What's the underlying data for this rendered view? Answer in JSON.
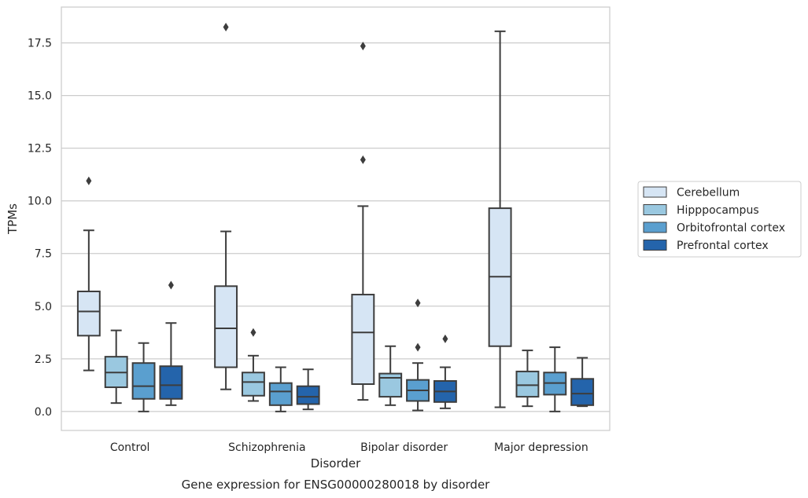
{
  "chart_data": {
    "type": "box",
    "xlabel": "Disorder",
    "ylabel": "TPMs",
    "caption": "Gene expression for ENSG00000280018 by disorder",
    "ylim": [
      -0.9,
      19.2
    ],
    "yticks": [
      0.0,
      2.5,
      5.0,
      7.5,
      10.0,
      12.5,
      15.0,
      17.5
    ],
    "ytick_labels": [
      "0.0",
      "2.5",
      "5.0",
      "7.5",
      "10.0",
      "12.5",
      "15.0",
      "17.5"
    ],
    "grid": "horizontal",
    "legend_position": "right",
    "categories": [
      "Control",
      "Schizophrenia",
      "Bipolar disorder",
      "Major depression"
    ],
    "series": [
      {
        "name": "Cerebellum",
        "color": "#d6e5f4",
        "boxes": [
          {
            "whislo": 1.95,
            "q1": 3.6,
            "med": 4.75,
            "q3": 5.7,
            "whishi": 8.6,
            "fliers": [
              10.95
            ]
          },
          {
            "whislo": 1.05,
            "q1": 2.1,
            "med": 3.95,
            "q3": 5.95,
            "whishi": 8.55,
            "fliers": [
              18.25
            ]
          },
          {
            "whislo": 0.55,
            "q1": 1.3,
            "med": 3.75,
            "q3": 5.55,
            "whishi": 9.75,
            "fliers": [
              11.95,
              17.35
            ]
          },
          {
            "whislo": 0.2,
            "q1": 3.1,
            "med": 6.4,
            "q3": 9.65,
            "whishi": 18.05,
            "fliers": []
          }
        ]
      },
      {
        "name": "Hipppocampus",
        "color": "#9ac8e0",
        "boxes": [
          {
            "whislo": 0.4,
            "q1": 1.15,
            "med": 1.85,
            "q3": 2.6,
            "whishi": 3.85,
            "fliers": []
          },
          {
            "whislo": 0.5,
            "q1": 0.75,
            "med": 1.4,
            "q3": 1.85,
            "whishi": 2.65,
            "fliers": [
              3.75
            ]
          },
          {
            "whislo": 0.3,
            "q1": 0.7,
            "med": 1.6,
            "q3": 1.8,
            "whishi": 3.1,
            "fliers": []
          },
          {
            "whislo": 0.25,
            "q1": 0.7,
            "med": 1.25,
            "q3": 1.9,
            "whishi": 2.9,
            "fliers": []
          }
        ]
      },
      {
        "name": "Orbitofrontal cortex",
        "color": "#5a9fcf",
        "boxes": [
          {
            "whislo": 0.0,
            "q1": 0.6,
            "med": 1.2,
            "q3": 2.3,
            "whishi": 3.25,
            "fliers": []
          },
          {
            "whislo": 0.0,
            "q1": 0.3,
            "med": 0.95,
            "q3": 1.35,
            "whishi": 2.1,
            "fliers": []
          },
          {
            "whislo": 0.05,
            "q1": 0.5,
            "med": 1.0,
            "q3": 1.5,
            "whishi": 2.3,
            "fliers": [
              3.05,
              5.15
            ]
          },
          {
            "whislo": 0.0,
            "q1": 0.8,
            "med": 1.35,
            "q3": 1.85,
            "whishi": 3.05,
            "fliers": []
          }
        ]
      },
      {
        "name": "Prefrontal cortex",
        "color": "#2464ab",
        "boxes": [
          {
            "whislo": 0.3,
            "q1": 0.6,
            "med": 1.25,
            "q3": 2.15,
            "whishi": 4.2,
            "fliers": [
              6.0
            ]
          },
          {
            "whislo": 0.1,
            "q1": 0.35,
            "med": 0.7,
            "q3": 1.2,
            "whishi": 2.0,
            "fliers": []
          },
          {
            "whislo": 0.15,
            "q1": 0.45,
            "med": 0.95,
            "q3": 1.45,
            "whishi": 2.1,
            "fliers": [
              3.45
            ]
          },
          {
            "whislo": 0.25,
            "q1": 0.3,
            "med": 0.85,
            "q3": 1.55,
            "whishi": 2.55,
            "fliers": []
          }
        ]
      }
    ]
  }
}
